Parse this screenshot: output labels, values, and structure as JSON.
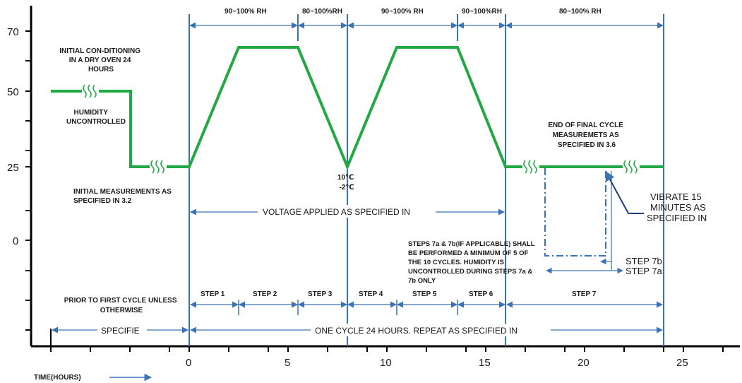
{
  "colors": {
    "profile": "#22a845",
    "axis": "#000000",
    "guide": "#3a73b5",
    "text": "#1a1a1a"
  },
  "y_axis": {
    "ticks": [
      "70",
      "50",
      "25",
      "0"
    ]
  },
  "x_axis": {
    "ticks": [
      "0",
      "5",
      "10",
      "15",
      "20",
      "25"
    ],
    "label": "TIME(HOURS)"
  },
  "rh_labels": [
    "90~100% RH",
    "80~100%RH",
    "90~100% RH",
    "90~100%RH",
    "80~100% RH"
  ],
  "texts": {
    "initial_conditioning": [
      "INITIAL CON-DITIONING",
      "IN A DRY OVEN 24",
      "HOURS"
    ],
    "humidity_uncontrolled": [
      "HUMIDITY",
      "UNCONTROLLED"
    ],
    "initial_measurements": [
      "INITIAL MEASUREMENTS AS",
      "SPECIFIED IN 3.2"
    ],
    "temp_low": [
      "10℃",
      "-2℃"
    ],
    "end_final_cycle": [
      "END OF FINAL CYCLE",
      "MEASUREMETS AS",
      "SPECIFIED IN 3.6"
    ],
    "vibrate": [
      "VIBRATE 15",
      "MINUTES AS",
      "SPECIFIED IN"
    ],
    "voltage_applied": "VOLTAGE APPLIED AS SPECIFIED IN",
    "steps_note": [
      "STEPS 7a & 7b(IF APPLICABLE) SHALL",
      "BE PERFORMED A MINIMUM OF 5 OF",
      "THE 10 CYCLES. HUMIDITY IS",
      "UNCONTROLLED DURING STEPS 7a &",
      "7b ONLY"
    ],
    "step_7b": "STEP 7b",
    "step_7a": "STEP 7a",
    "prior_first_cycle": [
      "PRIOR TO FIRST CYCLE UNLESS",
      "OTHERWISE"
    ],
    "specifie": "SPECIFIE",
    "one_cycle": "ONE CYCLE 24 HOURS. REPEAT AS SPECIFIED IN"
  },
  "steps": [
    "STEP 1",
    "STEP 2",
    "STEP 3",
    "STEP 4",
    "STEP 5",
    "STEP 6",
    "STEP 7"
  ]
}
